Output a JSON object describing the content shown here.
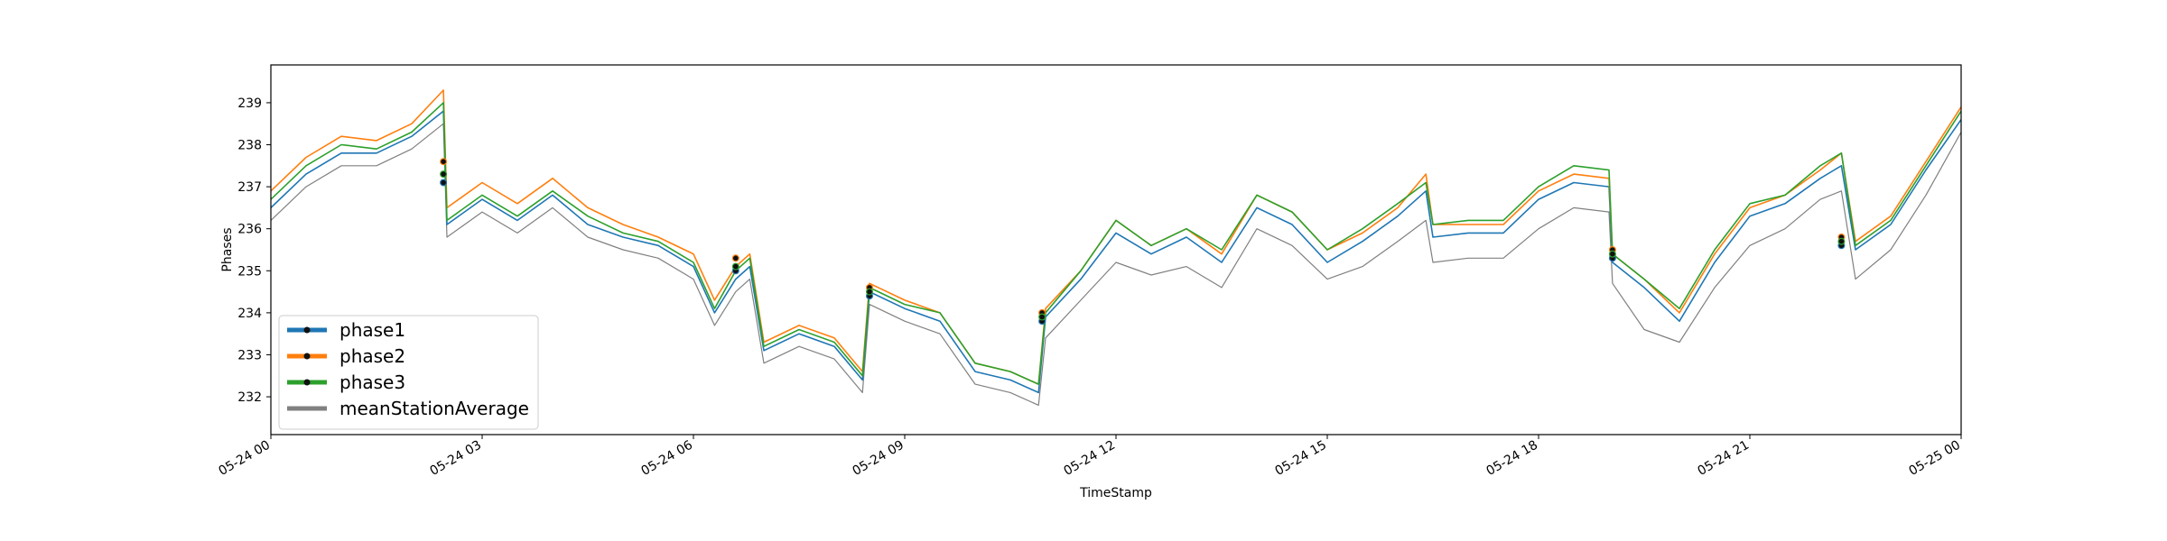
{
  "chart_data": {
    "type": "line",
    "title": "",
    "xlabel": "TimeStamp",
    "ylabel": "Phases",
    "xlim": [
      "05-24 00",
      "05-25 00"
    ],
    "ylim": [
      231.1,
      239.9
    ],
    "xtick_labels": [
      "05-24 00",
      "05-24 03",
      "05-24 06",
      "05-24 09",
      "05-24 12",
      "05-24 15",
      "05-24 18",
      "05-24 21",
      "05-25 00"
    ],
    "xtick_hours": [
      0,
      3,
      6,
      9,
      12,
      15,
      18,
      21,
      24
    ],
    "yticks": [
      232,
      233,
      234,
      235,
      236,
      237,
      238,
      239
    ],
    "grid": false,
    "legend_position": "lower-left",
    "x_hours": [
      0,
      0.5,
      1,
      1.5,
      2,
      2.45,
      2.5,
      3,
      3.5,
      4,
      4.5,
      5,
      5.5,
      6,
      6.3,
      6.6,
      6.8,
      7,
      7.5,
      8,
      8.4,
      8.5,
      9,
      9.5,
      10,
      10.5,
      10.9,
      11,
      11.5,
      12,
      12.5,
      13,
      13.5,
      14,
      14.5,
      15,
      15.5,
      16,
      16.4,
      16.5,
      17,
      17.5,
      18,
      18.5,
      19,
      19.05,
      19.5,
      20,
      20.5,
      21,
      21.5,
      22,
      22.3,
      22.5,
      23,
      23.5,
      24
    ],
    "series": [
      {
        "name": "phase1",
        "color": "#1f77b4",
        "values": [
          236.5,
          237.3,
          237.8,
          237.8,
          238.2,
          238.8,
          236.1,
          236.7,
          236.2,
          236.8,
          236.1,
          235.8,
          235.6,
          235.1,
          234.0,
          234.8,
          235.1,
          233.1,
          233.5,
          233.2,
          232.4,
          234.5,
          234.1,
          233.8,
          232.6,
          232.4,
          232.1,
          233.9,
          234.8,
          235.9,
          235.4,
          235.8,
          235.2,
          236.5,
          236.1,
          235.2,
          235.7,
          236.3,
          236.9,
          235.8,
          235.9,
          235.9,
          236.7,
          237.1,
          237.0,
          235.2,
          234.6,
          233.8,
          235.2,
          236.3,
          236.6,
          237.2,
          237.5,
          235.5,
          236.1,
          237.4,
          238.6
        ]
      },
      {
        "name": "phase2",
        "color": "#ff7f0e",
        "values": [
          236.9,
          237.7,
          238.2,
          238.1,
          238.5,
          239.3,
          236.5,
          237.1,
          236.6,
          237.2,
          236.5,
          236.1,
          235.8,
          235.4,
          234.3,
          235.1,
          235.4,
          233.3,
          233.7,
          233.4,
          232.6,
          234.7,
          234.3,
          234.0,
          232.8,
          232.6,
          232.3,
          234.1,
          235.0,
          236.2,
          235.6,
          236.0,
          235.4,
          236.8,
          236.4,
          235.5,
          235.9,
          236.5,
          237.3,
          236.1,
          236.1,
          236.1,
          236.9,
          237.3,
          237.2,
          235.4,
          234.8,
          234.0,
          235.4,
          236.5,
          236.8,
          237.4,
          237.8,
          235.7,
          236.3,
          237.6,
          238.9
        ]
      },
      {
        "name": "phase3",
        "color": "#2ca02c",
        "values": [
          236.7,
          237.5,
          238.0,
          237.9,
          238.3,
          239.0,
          236.2,
          236.8,
          236.3,
          236.9,
          236.3,
          235.9,
          235.7,
          235.2,
          234.1,
          235.0,
          235.3,
          233.2,
          233.6,
          233.3,
          232.5,
          234.6,
          234.2,
          234.0,
          232.8,
          232.6,
          232.3,
          234.0,
          235.0,
          236.2,
          235.6,
          236.0,
          235.5,
          236.8,
          236.4,
          235.5,
          236.0,
          236.6,
          237.1,
          236.1,
          236.2,
          236.2,
          237.0,
          237.5,
          237.4,
          235.4,
          234.8,
          234.1,
          235.5,
          236.6,
          236.8,
          237.5,
          237.8,
          235.6,
          236.2,
          237.5,
          238.8
        ]
      },
      {
        "name": "meanStationAverage",
        "color": "#808080",
        "values": [
          236.2,
          237.0,
          237.5,
          237.5,
          237.9,
          238.5,
          235.8,
          236.4,
          235.9,
          236.5,
          235.8,
          235.5,
          235.3,
          234.8,
          233.7,
          234.5,
          234.8,
          232.8,
          233.2,
          232.9,
          232.1,
          234.2,
          233.8,
          233.5,
          232.3,
          232.1,
          231.8,
          233.4,
          234.3,
          235.2,
          234.9,
          235.1,
          234.6,
          236.0,
          235.6,
          234.8,
          235.1,
          235.7,
          236.2,
          235.2,
          235.3,
          235.3,
          236.0,
          236.5,
          236.4,
          234.7,
          233.6,
          233.3,
          234.6,
          235.6,
          236.0,
          236.7,
          236.9,
          234.8,
          235.5,
          236.8,
          238.3
        ]
      }
    ],
    "markers": {
      "x_hours": [
        2.45,
        6.6,
        8.5,
        10.95,
        19.05,
        22.3
      ],
      "phase1": [
        237.1,
        235.0,
        234.4,
        233.8,
        235.3,
        235.6
      ],
      "phase2": [
        237.6,
        235.3,
        234.6,
        234.0,
        235.5,
        235.8
      ],
      "phase3": [
        237.3,
        235.1,
        234.5,
        233.9,
        235.4,
        235.7
      ]
    },
    "legend": [
      {
        "label": "phase1",
        "color": "#1f77b4",
        "marker": true
      },
      {
        "label": "phase2",
        "color": "#ff7f0e",
        "marker": true
      },
      {
        "label": "phase3",
        "color": "#2ca02c",
        "marker": true
      },
      {
        "label": "meanStationAverage",
        "color": "#808080",
        "marker": false
      }
    ]
  }
}
